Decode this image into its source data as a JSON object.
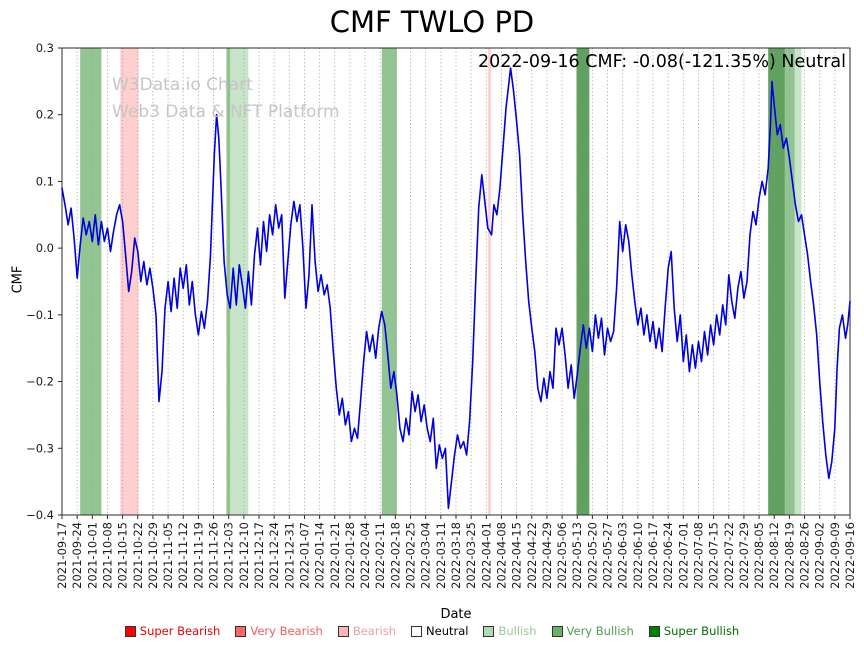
{
  "page": {
    "title": "CMF TWLO PD"
  },
  "annotation": "2022-09-16 CMF: -0.08(-121.35%) Neutral",
  "watermark": {
    "line1": "W3Data.io Chart",
    "line2": "Web3 Data & NFT Platform"
  },
  "chart_data": {
    "type": "line",
    "title": "CMF TWLO PD",
    "xlabel": "Date",
    "ylabel": "CMF",
    "ylim": [
      -0.4,
      0.3
    ],
    "grid": "vertical-dotted",
    "legend_position": "bottom",
    "line_color": "#0000e0",
    "grid_color": "#9a9a9a",
    "spine_color": "#2b2b2b",
    "yticks": [
      0.3,
      0.2,
      0.1,
      0.0,
      -0.1,
      -0.2,
      -0.3,
      -0.4
    ],
    "ytick_labels": [
      "0.3",
      "0.2",
      "0.1",
      "0.0",
      "−0.1",
      "−0.2",
      "−0.3",
      "−0.4"
    ],
    "x_unit": "weeks_from_first_tick",
    "x_tick_labels": [
      "2021-09-17",
      "2021-09-24",
      "2021-10-01",
      "2021-10-08",
      "2021-10-15",
      "2021-10-22",
      "2021-10-29",
      "2021-11-05",
      "2021-11-12",
      "2021-11-19",
      "2021-11-26",
      "2021-12-03",
      "2021-12-10",
      "2021-12-17",
      "2021-12-24",
      "2021-12-31",
      "2022-01-07",
      "2022-01-14",
      "2022-01-21",
      "2022-01-28",
      "2022-02-04",
      "2022-02-11",
      "2022-02-18",
      "2022-02-25",
      "2022-03-04",
      "2022-03-11",
      "2022-03-18",
      "2022-03-25",
      "2022-04-01",
      "2022-04-08",
      "2022-04-15",
      "2022-04-22",
      "2022-04-29",
      "2022-05-06",
      "2022-05-13",
      "2022-05-20",
      "2022-05-27",
      "2022-06-03",
      "2022-06-10",
      "2022-06-17",
      "2022-06-24",
      "2022-07-01",
      "2022-07-08",
      "2022-07-15",
      "2022-07-22",
      "2022-07-29",
      "2022-08-05",
      "2022-08-12",
      "2022-08-19",
      "2022-08-26",
      "2022-09-02",
      "2022-09-09",
      "2022-09-16"
    ],
    "band_colors": {
      "super_bearish": "rgba(220,0,0,0.75)",
      "very_bearish": "rgba(255,30,30,0.5)",
      "bearish": "rgba(255,60,60,0.25)",
      "bullish": "rgba(60,160,60,0.28)",
      "very_bullish": "rgba(40,140,40,0.5)",
      "super_bullish": "rgba(10,110,10,0.65)"
    },
    "bands": [
      {
        "from": 1.2,
        "to": 2.6,
        "type": "very_bullish"
      },
      {
        "from": 3.85,
        "to": 5.05,
        "type": "bearish"
      },
      {
        "from": 10.85,
        "to": 11.1,
        "type": "very_bullish"
      },
      {
        "from": 11.1,
        "to": 12.3,
        "type": "bullish"
      },
      {
        "from": 21.1,
        "to": 22.1,
        "type": "very_bullish"
      },
      {
        "from": 28.12,
        "to": 28.3,
        "type": "bearish"
      },
      {
        "from": 33.95,
        "to": 34.8,
        "type": "super_bullish"
      },
      {
        "from": 46.6,
        "to": 47.7,
        "type": "super_bullish"
      },
      {
        "from": 47.7,
        "to": 48.35,
        "type": "very_bullish"
      },
      {
        "from": 48.35,
        "to": 48.8,
        "type": "bullish"
      }
    ],
    "series": [
      {
        "name": "CMF",
        "points": [
          [
            0,
            0.09
          ],
          [
            0.2,
            0.065
          ],
          [
            0.4,
            0.035
          ],
          [
            0.6,
            0.06
          ],
          [
            0.8,
            0.015
          ],
          [
            1,
            -0.045
          ],
          [
            1.2,
            0.005
          ],
          [
            1.4,
            0.045
          ],
          [
            1.6,
            0.02
          ],
          [
            1.8,
            0.04
          ],
          [
            2,
            0.01
          ],
          [
            2.2,
            0.05
          ],
          [
            2.4,
            0.005
          ],
          [
            2.6,
            0.04
          ],
          [
            2.8,
            0.01
          ],
          [
            3,
            0.03
          ],
          [
            3.2,
            -0.005
          ],
          [
            3.4,
            0.025
          ],
          [
            3.6,
            0.05
          ],
          [
            3.8,
            0.065
          ],
          [
            4,
            0.04
          ],
          [
            4.2,
            -0.01
          ],
          [
            4.4,
            -0.065
          ],
          [
            4.6,
            -0.035
          ],
          [
            4.8,
            0.015
          ],
          [
            5,
            -0.005
          ],
          [
            5.2,
            -0.05
          ],
          [
            5.4,
            -0.02
          ],
          [
            5.6,
            -0.055
          ],
          [
            5.8,
            -0.03
          ],
          [
            6,
            -0.06
          ],
          [
            6.2,
            -0.1
          ],
          [
            6.4,
            -0.23
          ],
          [
            6.6,
            -0.185
          ],
          [
            6.8,
            -0.09
          ],
          [
            7,
            -0.05
          ],
          [
            7.2,
            -0.095
          ],
          [
            7.4,
            -0.045
          ],
          [
            7.6,
            -0.09
          ],
          [
            7.8,
            -0.03
          ],
          [
            8,
            -0.06
          ],
          [
            8.2,
            -0.025
          ],
          [
            8.4,
            -0.085
          ],
          [
            8.6,
            -0.05
          ],
          [
            8.8,
            -0.1
          ],
          [
            9,
            -0.13
          ],
          [
            9.2,
            -0.095
          ],
          [
            9.4,
            -0.12
          ],
          [
            9.6,
            -0.08
          ],
          [
            9.8,
            -0.01
          ],
          [
            10.05,
            0.14
          ],
          [
            10.2,
            0.2
          ],
          [
            10.35,
            0.165
          ],
          [
            10.5,
            0.09
          ],
          [
            10.7,
            -0.02
          ],
          [
            10.9,
            -0.07
          ],
          [
            11.1,
            -0.09
          ],
          [
            11.3,
            -0.03
          ],
          [
            11.5,
            -0.085
          ],
          [
            11.7,
            -0.025
          ],
          [
            11.9,
            -0.055
          ],
          [
            12.1,
            -0.09
          ],
          [
            12.3,
            -0.035
          ],
          [
            12.5,
            -0.085
          ],
          [
            12.7,
            -0.01
          ],
          [
            12.9,
            0.03
          ],
          [
            13.1,
            -0.025
          ],
          [
            13.3,
            0.04
          ],
          [
            13.5,
            -0.005
          ],
          [
            13.7,
            0.05
          ],
          [
            13.9,
            0.02
          ],
          [
            14.1,
            0.065
          ],
          [
            14.3,
            0.03
          ],
          [
            14.5,
            0.05
          ],
          [
            14.7,
            -0.075
          ],
          [
            14.9,
            -0.02
          ],
          [
            15.1,
            0.035
          ],
          [
            15.3,
            0.07
          ],
          [
            15.5,
            0.04
          ],
          [
            15.7,
            0.065
          ],
          [
            15.9,
            0
          ],
          [
            16.1,
            -0.09
          ],
          [
            16.3,
            -0.04
          ],
          [
            16.5,
            0.065
          ],
          [
            16.7,
            -0.02
          ],
          [
            16.9,
            -0.065
          ],
          [
            17.1,
            -0.04
          ],
          [
            17.3,
            -0.07
          ],
          [
            17.5,
            -0.055
          ],
          [
            17.7,
            -0.09
          ],
          [
            17.9,
            -0.155
          ],
          [
            18.1,
            -0.21
          ],
          [
            18.3,
            -0.25
          ],
          [
            18.5,
            -0.225
          ],
          [
            18.7,
            -0.265
          ],
          [
            18.9,
            -0.245
          ],
          [
            19.1,
            -0.29
          ],
          [
            19.3,
            -0.27
          ],
          [
            19.5,
            -0.285
          ],
          [
            19.7,
            -0.23
          ],
          [
            19.9,
            -0.17
          ],
          [
            20.1,
            -0.125
          ],
          [
            20.3,
            -0.155
          ],
          [
            20.5,
            -0.13
          ],
          [
            20.7,
            -0.165
          ],
          [
            20.9,
            -0.12
          ],
          [
            21.1,
            -0.095
          ],
          [
            21.3,
            -0.115
          ],
          [
            21.5,
            -0.16
          ],
          [
            21.7,
            -0.21
          ],
          [
            21.9,
            -0.185
          ],
          [
            22.1,
            -0.22
          ],
          [
            22.3,
            -0.27
          ],
          [
            22.5,
            -0.29
          ],
          [
            22.7,
            -0.255
          ],
          [
            22.9,
            -0.28
          ],
          [
            23.1,
            -0.215
          ],
          [
            23.3,
            -0.245
          ],
          [
            23.5,
            -0.22
          ],
          [
            23.7,
            -0.26
          ],
          [
            23.9,
            -0.235
          ],
          [
            24.1,
            -0.27
          ],
          [
            24.3,
            -0.29
          ],
          [
            24.5,
            -0.255
          ],
          [
            24.7,
            -0.33
          ],
          [
            24.9,
            -0.295
          ],
          [
            25.1,
            -0.315
          ],
          [
            25.3,
            -0.3
          ],
          [
            25.5,
            -0.39
          ],
          [
            25.7,
            -0.35
          ],
          [
            25.9,
            -0.31
          ],
          [
            26.1,
            -0.28
          ],
          [
            26.3,
            -0.3
          ],
          [
            26.5,
            -0.29
          ],
          [
            26.7,
            -0.31
          ],
          [
            26.9,
            -0.26
          ],
          [
            27.1,
            -0.17
          ],
          [
            27.3,
            -0.05
          ],
          [
            27.5,
            0.06
          ],
          [
            27.7,
            0.11
          ],
          [
            27.9,
            0.07
          ],
          [
            28.1,
            0.03
          ],
          [
            28.35,
            0.02
          ],
          [
            28.5,
            0.065
          ],
          [
            28.7,
            0.05
          ],
          [
            28.9,
            0.09
          ],
          [
            29.1,
            0.15
          ],
          [
            29.3,
            0.21
          ],
          [
            29.6,
            0.27
          ],
          [
            29.8,
            0.235
          ],
          [
            30,
            0.19
          ],
          [
            30.2,
            0.14
          ],
          [
            30.4,
            0.05
          ],
          [
            30.6,
            -0.02
          ],
          [
            30.8,
            -0.08
          ],
          [
            31,
            -0.12
          ],
          [
            31.2,
            -0.155
          ],
          [
            31.4,
            -0.21
          ],
          [
            31.6,
            -0.23
          ],
          [
            31.8,
            -0.195
          ],
          [
            32,
            -0.225
          ],
          [
            32.2,
            -0.185
          ],
          [
            32.4,
            -0.21
          ],
          [
            32.6,
            -0.12
          ],
          [
            32.8,
            -0.145
          ],
          [
            33,
            -0.12
          ],
          [
            33.2,
            -0.16
          ],
          [
            33.4,
            -0.21
          ],
          [
            33.6,
            -0.175
          ],
          [
            33.8,
            -0.225
          ],
          [
            34,
            -0.19
          ],
          [
            34.2,
            -0.15
          ],
          [
            34.4,
            -0.115
          ],
          [
            34.6,
            -0.15
          ],
          [
            34.8,
            -0.12
          ],
          [
            35,
            -0.155
          ],
          [
            35.2,
            -0.1
          ],
          [
            35.4,
            -0.135
          ],
          [
            35.6,
            -0.105
          ],
          [
            35.8,
            -0.16
          ],
          [
            36,
            -0.12
          ],
          [
            36.2,
            -0.14
          ],
          [
            36.4,
            -0.125
          ],
          [
            36.6,
            -0.06
          ],
          [
            36.8,
            0.04
          ],
          [
            37,
            -0.005
          ],
          [
            37.2,
            0.035
          ],
          [
            37.4,
            0.01
          ],
          [
            37.6,
            -0.04
          ],
          [
            37.8,
            -0.08
          ],
          [
            38,
            -0.115
          ],
          [
            38.2,
            -0.09
          ],
          [
            38.4,
            -0.13
          ],
          [
            38.6,
            -0.1
          ],
          [
            38.8,
            -0.14
          ],
          [
            39,
            -0.11
          ],
          [
            39.2,
            -0.15
          ],
          [
            39.4,
            -0.12
          ],
          [
            39.6,
            -0.155
          ],
          [
            39.8,
            -0.09
          ],
          [
            40,
            -0.03
          ],
          [
            40.2,
            -0.005
          ],
          [
            40.4,
            -0.09
          ],
          [
            40.6,
            -0.14
          ],
          [
            40.8,
            -0.1
          ],
          [
            41,
            -0.17
          ],
          [
            41.2,
            -0.13
          ],
          [
            41.4,
            -0.185
          ],
          [
            41.6,
            -0.145
          ],
          [
            41.8,
            -0.18
          ],
          [
            42,
            -0.14
          ],
          [
            42.2,
            -0.17
          ],
          [
            42.4,
            -0.125
          ],
          [
            42.6,
            -0.16
          ],
          [
            42.8,
            -0.115
          ],
          [
            43,
            -0.145
          ],
          [
            43.2,
            -0.1
          ],
          [
            43.4,
            -0.13
          ],
          [
            43.6,
            -0.085
          ],
          [
            43.8,
            -0.115
          ],
          [
            44,
            -0.04
          ],
          [
            44.2,
            -0.08
          ],
          [
            44.4,
            -0.105
          ],
          [
            44.6,
            -0.06
          ],
          [
            44.8,
            -0.035
          ],
          [
            45,
            -0.075
          ],
          [
            45.2,
            -0.05
          ],
          [
            45.4,
            0.02
          ],
          [
            45.6,
            0.055
          ],
          [
            45.8,
            0.035
          ],
          [
            46,
            0.075
          ],
          [
            46.2,
            0.1
          ],
          [
            46.4,
            0.08
          ],
          [
            46.6,
            0.12
          ],
          [
            46.75,
            0.185
          ],
          [
            46.85,
            0.25
          ],
          [
            47,
            0.215
          ],
          [
            47.2,
            0.17
          ],
          [
            47.4,
            0.185
          ],
          [
            47.6,
            0.15
          ],
          [
            47.8,
            0.165
          ],
          [
            48,
            0.135
          ],
          [
            48.2,
            0.1
          ],
          [
            48.4,
            0.065
          ],
          [
            48.6,
            0.04
          ],
          [
            48.8,
            0.05
          ],
          [
            49,
            0.02
          ],
          [
            49.2,
            -0.01
          ],
          [
            49.4,
            -0.05
          ],
          [
            49.6,
            -0.085
          ],
          [
            49.8,
            -0.13
          ],
          [
            50,
            -0.2
          ],
          [
            50.2,
            -0.26
          ],
          [
            50.4,
            -0.31
          ],
          [
            50.6,
            -0.345
          ],
          [
            50.8,
            -0.32
          ],
          [
            51,
            -0.27
          ],
          [
            51.15,
            -0.18
          ],
          [
            51.3,
            -0.12
          ],
          [
            51.5,
            -0.1
          ],
          [
            51.7,
            -0.135
          ],
          [
            51.85,
            -0.115
          ],
          [
            52,
            -0.08
          ]
        ]
      }
    ]
  },
  "legend": {
    "items": [
      {
        "label": "Super Bearish",
        "color": "#ff0000",
        "text_color": "#e80000"
      },
      {
        "label": "Very Bearish",
        "color": "#ff6666",
        "text_color": "#f25d5d"
      },
      {
        "label": "Bearish",
        "color": "#ffb3b3",
        "text_color": "#f0a0a0"
      },
      {
        "label": "Neutral",
        "color": "#ffffff",
        "text_color": "#000000"
      },
      {
        "label": "Bullish",
        "color": "#b3d9b3",
        "text_color": "#9cc79c"
      },
      {
        "label": "Very Bullish",
        "color": "#66b266",
        "text_color": "#4f9b4f"
      },
      {
        "label": "Super Bullish",
        "color": "#008000",
        "text_color": "#007000"
      }
    ]
  }
}
